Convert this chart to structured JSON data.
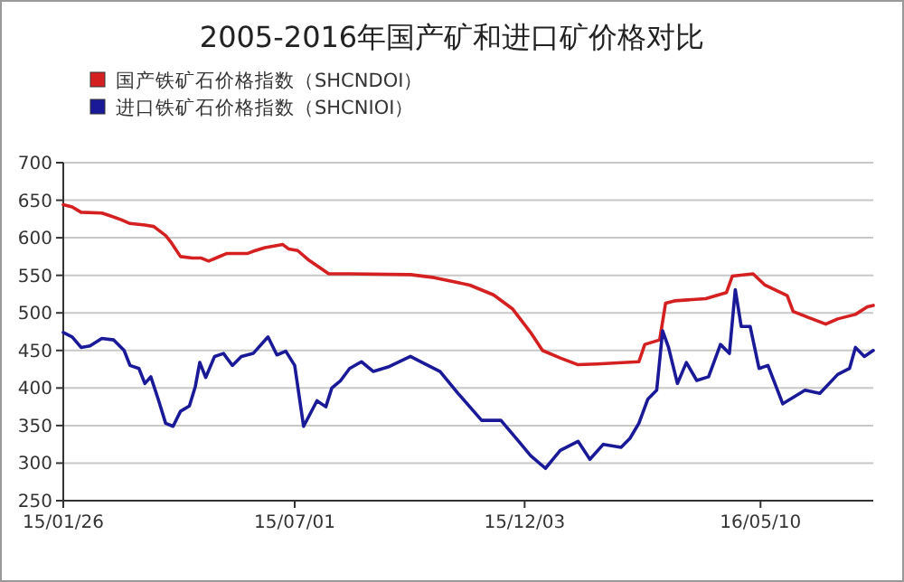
{
  "chart_data": {
    "type": "line",
    "title": "2005-2016年国产矿和进口矿价格对比",
    "ylim": [
      250,
      700
    ],
    "yticks": [
      250,
      300,
      350,
      400,
      450,
      500,
      550,
      600,
      650,
      700
    ],
    "xlim": [
      "2015-01-26",
      "2016-07-25"
    ],
    "xticks": [
      {
        "value": "2015-01-26",
        "label": "15/01/26"
      },
      {
        "value": "2015-07-01",
        "label": "15/07/01"
      },
      {
        "value": "2015-12-03",
        "label": "15/12/03"
      },
      {
        "value": "2016-05-10",
        "label": "16/05/10"
      }
    ],
    "grid": "y",
    "legend": "top left",
    "marker": "none",
    "line_style": "solid",
    "series": [
      {
        "name": "国产铁矿石价格指数（SHCNDOI）",
        "color": "#d42020",
        "x": [
          "2015-01-26",
          "2015-02-01",
          "2015-02-07",
          "2015-02-21",
          "2015-02-27",
          "2015-03-06",
          "2015-03-12",
          "2015-03-22",
          "2015-03-28",
          "2015-04-01",
          "2015-04-05",
          "2015-04-09",
          "2015-04-15",
          "2015-04-23",
          "2015-04-29",
          "2015-05-04",
          "2015-05-10",
          "2015-05-16",
          "2015-05-30",
          "2015-06-03",
          "2015-06-11",
          "2015-06-23",
          "2015-06-27",
          "2015-07-03",
          "2015-07-10",
          "2015-07-24",
          "2015-08-07",
          "2015-09-17",
          "2015-10-03",
          "2015-10-27",
          "2015-11-12",
          "2015-11-25",
          "2015-12-07",
          "2015-12-15",
          "2015-12-27",
          "2016-01-08",
          "2016-01-21",
          "2016-02-18",
          "2016-02-22",
          "2016-03-03",
          "2016-03-07",
          "2016-03-13",
          "2016-04-03",
          "2016-04-17",
          "2016-04-21",
          "2016-05-05",
          "2016-05-13",
          "2016-05-28",
          "2016-06-01",
          "2016-06-11",
          "2016-06-23",
          "2016-07-01",
          "2016-07-13",
          "2016-07-21",
          "2016-07-25"
        ],
        "values": [
          644,
          641,
          634,
          633,
          629,
          624,
          619,
          617,
          615,
          609,
          603,
          593,
          575,
          573,
          573,
          569,
          574,
          579,
          579,
          582,
          587,
          591,
          585,
          583,
          571,
          552,
          552,
          551,
          547,
          537,
          524,
          505,
          474,
          450,
          440,
          431,
          432,
          435,
          458,
          464,
          513,
          516,
          519,
          527,
          549,
          552,
          537,
          523,
          502,
          494,
          485,
          492,
          498,
          508,
          510
        ]
      },
      {
        "name": "进口铁矿石价格指数（SHCNIOI）",
        "color": "#1a1a99",
        "x": [
          "2015-01-26",
          "2015-02-01",
          "2015-02-07",
          "2015-02-13",
          "2015-02-21",
          "2015-03-01",
          "2015-03-08",
          "2015-03-12",
          "2015-03-18",
          "2015-03-22",
          "2015-03-26",
          "2015-03-31",
          "2015-04-05",
          "2015-04-10",
          "2015-04-15",
          "2015-04-21",
          "2015-04-25",
          "2015-04-28",
          "2015-05-02",
          "2015-05-08",
          "2015-05-14",
          "2015-05-20",
          "2015-05-26",
          "2015-06-03",
          "2015-06-13",
          "2015-06-19",
          "2015-06-25",
          "2015-07-01",
          "2015-07-07",
          "2015-07-16",
          "2015-07-22",
          "2015-07-26",
          "2015-08-01",
          "2015-08-07",
          "2015-08-15",
          "2015-08-23",
          "2015-09-02",
          "2015-09-17",
          "2015-09-25",
          "2015-10-07",
          "2015-10-19",
          "2015-11-04",
          "2015-11-17",
          "2015-11-29",
          "2015-12-07",
          "2015-12-17",
          "2015-12-27",
          "2016-01-08",
          "2016-01-16",
          "2016-01-25",
          "2016-02-06",
          "2016-02-12",
          "2016-02-18",
          "2016-02-24",
          "2016-03-01",
          "2016-03-05",
          "2016-03-09",
          "2016-03-15",
          "2016-03-21",
          "2016-03-28",
          "2016-04-05",
          "2016-04-13",
          "2016-04-19",
          "2016-04-23",
          "2016-04-27",
          "2016-05-03",
          "2016-05-09",
          "2016-05-15",
          "2016-05-25",
          "2016-06-09",
          "2016-06-19",
          "2016-07-01",
          "2016-07-09",
          "2016-07-13",
          "2016-07-19",
          "2016-07-25"
        ],
        "values": [
          474,
          468,
          454,
          456,
          466,
          464,
          450,
          430,
          426,
          406,
          415,
          385,
          353,
          349,
          369,
          376,
          402,
          434,
          414,
          442,
          446,
          430,
          442,
          446,
          468,
          444,
          449,
          430,
          349,
          383,
          375,
          400,
          410,
          426,
          435,
          422,
          428,
          442,
          434,
          422,
          393,
          357,
          357,
          329,
          310,
          293,
          317,
          329,
          305,
          325,
          321,
          333,
          353,
          385,
          397,
          476,
          454,
          406,
          434,
          410,
          415,
          458,
          446,
          531,
          482,
          482,
          426,
          430,
          379,
          397,
          393,
          418,
          426,
          454,
          442,
          450
        ]
      }
    ]
  }
}
